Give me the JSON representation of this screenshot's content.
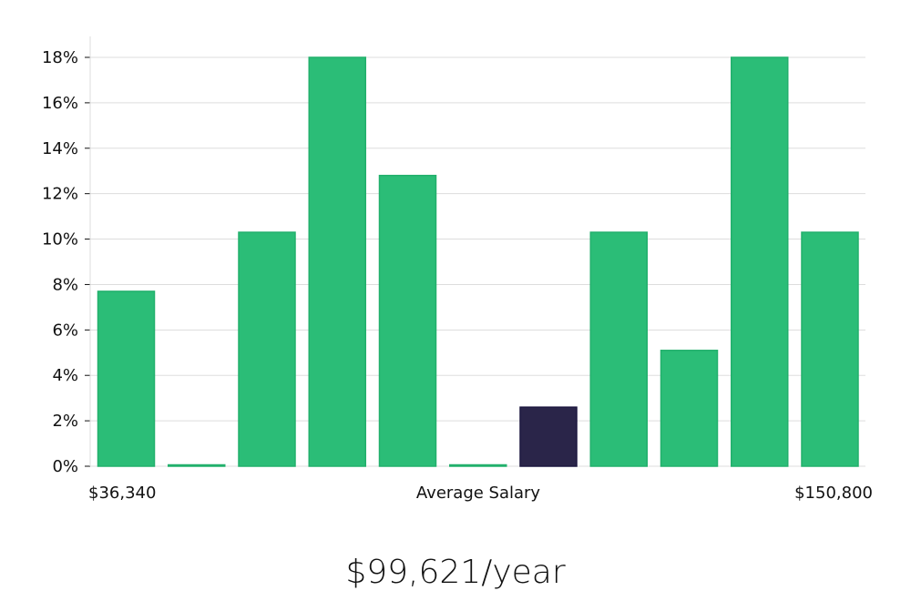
{
  "chart_data": {
    "type": "bar",
    "title": "",
    "ylabel": "",
    "xlabel": "Average Salary",
    "x_min_label": "$36,340",
    "x_max_label": "$150,800",
    "ylim": [
      0,
      18
    ],
    "y_ticks": [
      "0%",
      "2%",
      "4%",
      "6%",
      "8%",
      "10%",
      "12%",
      "14%",
      "16%",
      "18%"
    ],
    "grid": true,
    "values": [
      7.7,
      0,
      10.3,
      18,
      12.8,
      0,
      2.6,
      10.3,
      5.1,
      18,
      10.3
    ],
    "highlight_index": 6,
    "colors": {
      "bar": "#2bbd77",
      "bar_highlight": "#2a2549"
    }
  },
  "headline": "$99,621/year"
}
